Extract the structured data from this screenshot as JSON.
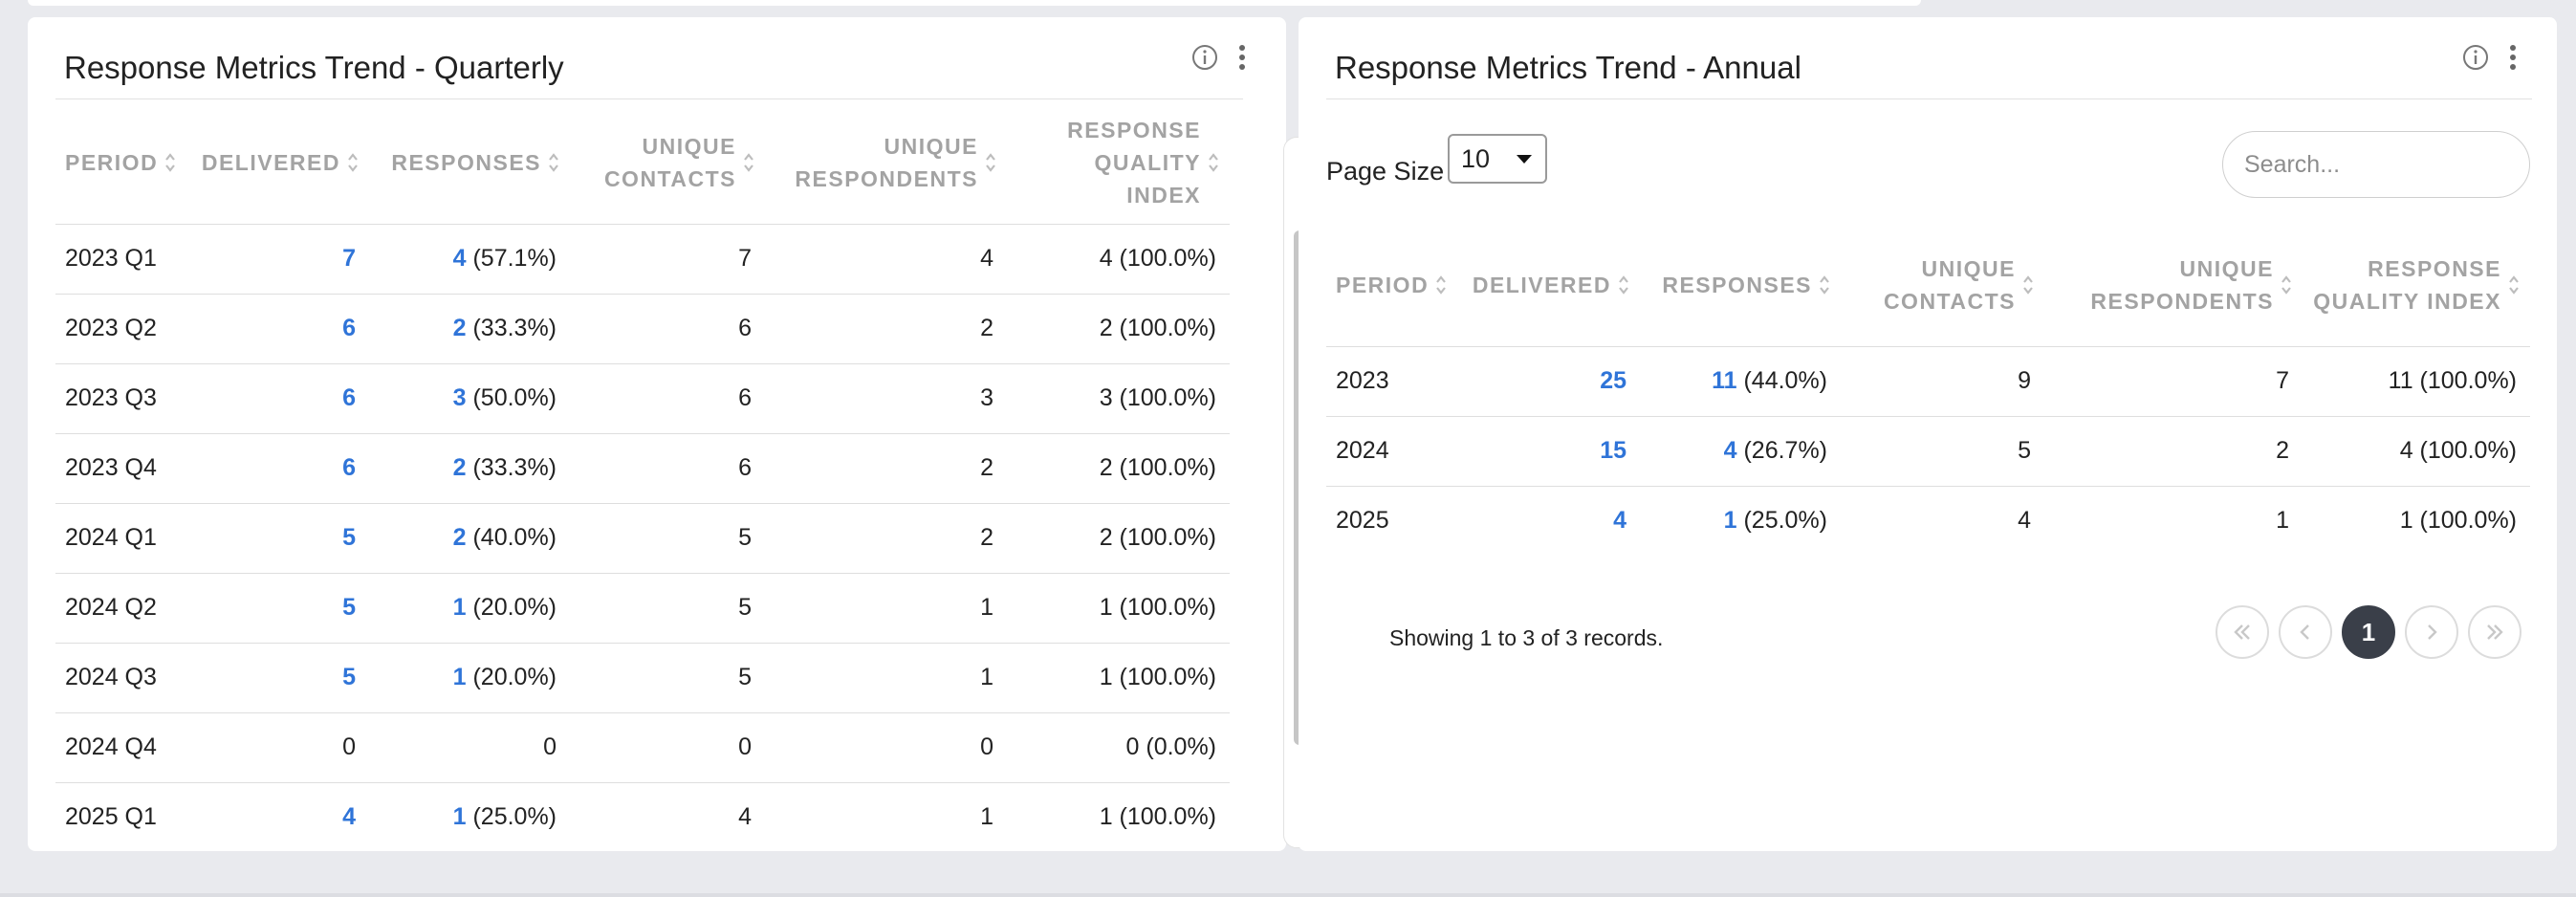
{
  "quarterly": {
    "title": "Response Metrics Trend - Quarterly",
    "columns": [
      "Period",
      "Delivered",
      "Responses",
      "Unique Contacts",
      "Unique Respondents",
      "Response Quality Index"
    ],
    "rows": [
      {
        "period": "2023 Q1",
        "delivered": "7",
        "responses": "4",
        "responses_pct": " (57.1%)",
        "contacts": "7",
        "respondents": "4",
        "rqi": "4 (100.0%)"
      },
      {
        "period": "2023 Q2",
        "delivered": "6",
        "responses": "2",
        "responses_pct": " (33.3%)",
        "contacts": "6",
        "respondents": "2",
        "rqi": "2 (100.0%)"
      },
      {
        "period": "2023 Q3",
        "delivered": "6",
        "responses": "3",
        "responses_pct": " (50.0%)",
        "contacts": "6",
        "respondents": "3",
        "rqi": "3 (100.0%)"
      },
      {
        "period": "2023 Q4",
        "delivered": "6",
        "responses": "2",
        "responses_pct": " (33.3%)",
        "contacts": "6",
        "respondents": "2",
        "rqi": "2 (100.0%)"
      },
      {
        "period": "2024 Q1",
        "delivered": "5",
        "responses": "2",
        "responses_pct": " (40.0%)",
        "contacts": "5",
        "respondents": "2",
        "rqi": "2 (100.0%)"
      },
      {
        "period": "2024 Q2",
        "delivered": "5",
        "responses": "1",
        "responses_pct": " (20.0%)",
        "contacts": "5",
        "respondents": "1",
        "rqi": "1 (100.0%)"
      },
      {
        "period": "2024 Q3",
        "delivered": "5",
        "responses": "1",
        "responses_pct": " (20.0%)",
        "contacts": "5",
        "respondents": "1",
        "rqi": "1 (100.0%)"
      },
      {
        "period": "2024 Q4",
        "delivered": "0",
        "responses": "0",
        "responses_pct": "",
        "contacts": "0",
        "respondents": "0",
        "rqi": "0 (0.0%)"
      },
      {
        "period": "2025 Q1",
        "delivered": "4",
        "responses": "1",
        "responses_pct": " (25.0%)",
        "contacts": "4",
        "respondents": "1",
        "rqi": "1 (100.0%)"
      }
    ]
  },
  "annual": {
    "title": "Response Metrics Trend - Annual",
    "page_size_label": "Page Size",
    "page_size_value": "10",
    "search_placeholder": "Search...",
    "columns": [
      "Period",
      "Delivered",
      "Responses",
      "Unique Contacts",
      "Unique Respondents",
      "Response Quality Index"
    ],
    "rows": [
      {
        "period": "2023",
        "delivered": "25",
        "responses": "11",
        "responses_pct": " (44.0%)",
        "contacts": "9",
        "respondents": "7",
        "rqi": "11 (100.0%)"
      },
      {
        "period": "2024",
        "delivered": "15",
        "responses": "4",
        "responses_pct": " (26.7%)",
        "contacts": "5",
        "respondents": "2",
        "rqi": "4 (100.0%)"
      },
      {
        "period": "2025",
        "delivered": "4",
        "responses": "1",
        "responses_pct": " (25.0%)",
        "contacts": "4",
        "respondents": "1",
        "rqi": "1 (100.0%)"
      }
    ],
    "showing_text": "Showing 1 to 3 of 3 records.",
    "current_page": "1"
  },
  "icons": {
    "info": "info-icon",
    "menu": "kebab-menu-icon",
    "sort": "sort-icon"
  },
  "colors": {
    "link": "#2f74d8",
    "active_page": "#3a3f49",
    "header_text": "#a3a3a3"
  }
}
